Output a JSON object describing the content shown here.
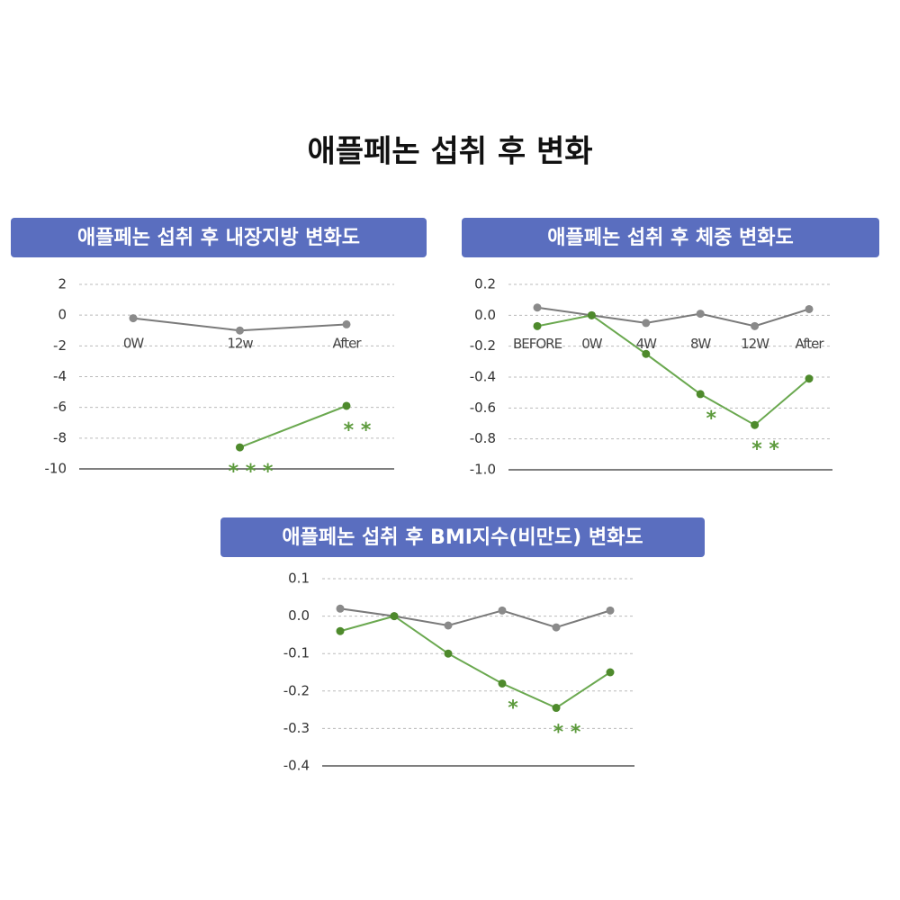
{
  "title": "애플페논 섭취 후 변화",
  "chart_data": [
    {
      "type": "line",
      "title": "애플페논 섭취 후 내장지방 변화도",
      "categories": [
        "0W",
        "12w",
        "After"
      ],
      "series": [
        {
          "color": "#7a7a7a",
          "values": [
            -0.2,
            -1.0,
            -0.6
          ]
        },
        {
          "color": "#6aa84f",
          "values": [
            null,
            -8.6,
            -5.9
          ]
        }
      ],
      "annotations": [
        null,
        "* * *",
        "* *"
      ],
      "ylim": [
        -10,
        2
      ],
      "yticks": [
        2,
        0,
        -2,
        -4,
        -6,
        -8,
        -10
      ],
      "grid": true
    },
    {
      "type": "line",
      "title": "애플페논 섭취 후 체중 변화도",
      "categories": [
        "BEFORE",
        "0W",
        "4W",
        "8W",
        "12W",
        "After"
      ],
      "series": [
        {
          "color": "#7a7a7a",
          "values": [
            0.05,
            0.0,
            -0.05,
            0.01,
            -0.07,
            0.04
          ]
        },
        {
          "color": "#6aa84f",
          "values": [
            -0.07,
            0.0,
            -0.25,
            -0.51,
            -0.71,
            -0.41
          ]
        }
      ],
      "annotations": [
        null,
        null,
        null,
        "*",
        "* *",
        null
      ],
      "ylim": [
        -1.0,
        0.2
      ],
      "yticks": [
        0.2,
        {
          "value": 0,
          "label": "0.0"
        },
        -0.2,
        -0.4,
        -0.6,
        -0.8,
        {
          "value": -1,
          "label": "-1.0"
        }
      ],
      "grid": true
    },
    {
      "type": "line",
      "title": "애플페논 섭취 후 BMI지수(비만도) 변화도",
      "categories": [
        null,
        null,
        null,
        null,
        null,
        null
      ],
      "series": [
        {
          "color": "#7a7a7a",
          "values": [
            0.02,
            0.0,
            -0.025,
            0.015,
            -0.03,
            0.015
          ]
        },
        {
          "color": "#6aa84f",
          "values": [
            -0.04,
            0.0,
            -0.1,
            -0.18,
            -0.245,
            -0.15
          ]
        }
      ],
      "annotations": [
        null,
        null,
        null,
        "*",
        "* *",
        null
      ],
      "ylim": [
        -0.4,
        0.1
      ],
      "yticks": [
        0.1,
        {
          "value": 0,
          "label": "0.0"
        },
        -0.1,
        -0.2,
        -0.3,
        -0.4
      ],
      "grid": true
    }
  ]
}
